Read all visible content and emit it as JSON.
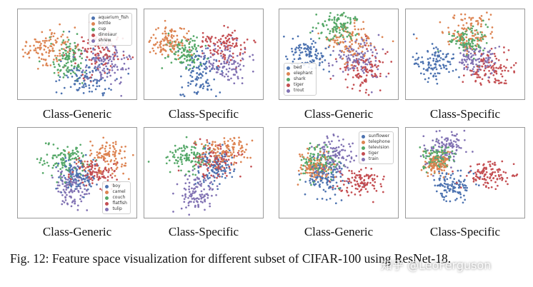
{
  "colors": {
    "blue": "#4c72b0",
    "orange": "#dd8452",
    "green": "#55a868",
    "red": "#c44e52",
    "purple": "#8172b3",
    "border": "#9a9a9a"
  },
  "panels": [
    {
      "caption": "Class-Generic",
      "legend": [
        "aquarium_fish",
        "bottle",
        "cup",
        "dinosaur",
        "shrew"
      ],
      "legend_pos": "top-right"
    },
    {
      "caption": "Class-Specific",
      "legend": [],
      "legend_pos": "none"
    },
    {
      "caption": "Class-Generic",
      "legend": [
        "bed",
        "elephant",
        "shark",
        "tiger",
        "trout"
      ],
      "legend_pos": "bottom-left"
    },
    {
      "caption": "Class-Specific",
      "legend": [],
      "legend_pos": "none"
    },
    {
      "caption": "Class-Generic",
      "legend": [
        "boy",
        "camel",
        "couch",
        "flatfish",
        "tulip"
      ],
      "legend_pos": "bottom-right"
    },
    {
      "caption": "Class-Specific",
      "legend": [],
      "legend_pos": "none"
    },
    {
      "caption": "Class-Generic",
      "legend": [
        "sunflower",
        "telephone",
        "television",
        "tiger",
        "train"
      ],
      "legend_pos": "top-right"
    },
    {
      "caption": "Class-Specific",
      "legend": [],
      "legend_pos": "none"
    }
  ],
  "figure_caption": "Fig. 12: Feature space visualization for different subset of CIFAR-100 using ResNet-18.",
  "watermark": "知乎 @LeoFerguson"
}
